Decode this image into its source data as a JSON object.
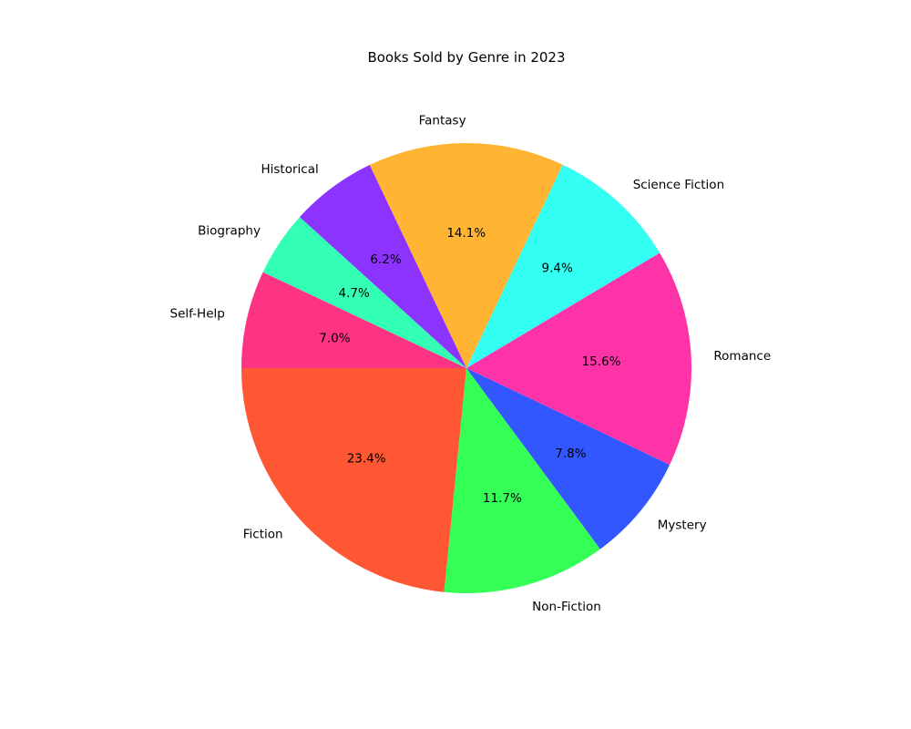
{
  "chart_data": {
    "type": "pie",
    "title": "Books Sold by Genre in 2023",
    "start_angle_deg": 180,
    "direction": "counterclockwise",
    "slices": [
      {
        "label": "Fiction",
        "value": 23.4,
        "pct_label": "23.4%",
        "color": "#FF5733"
      },
      {
        "label": "Non-Fiction",
        "value": 11.7,
        "pct_label": "11.7%",
        "color": "#33FF57"
      },
      {
        "label": "Mystery",
        "value": 7.8,
        "pct_label": "7.8%",
        "color": "#3357FF"
      },
      {
        "label": "Romance",
        "value": 15.6,
        "pct_label": "15.6%",
        "color": "#FF33A8"
      },
      {
        "label": "Science Fiction",
        "value": 9.4,
        "pct_label": "9.4%",
        "color": "#33FFF3"
      },
      {
        "label": "Fantasy",
        "value": 14.1,
        "pct_label": "14.1%",
        "color": "#FFB533"
      },
      {
        "label": "Historical",
        "value": 6.2,
        "pct_label": "6.2%",
        "color": "#8D33FF"
      },
      {
        "label": "Biography",
        "value": 4.7,
        "pct_label": "4.7%",
        "color": "#33FFB5"
      },
      {
        "label": "Self-Help",
        "value": 7.0,
        "pct_label": "7.0%",
        "color": "#FF3383"
      }
    ]
  }
}
